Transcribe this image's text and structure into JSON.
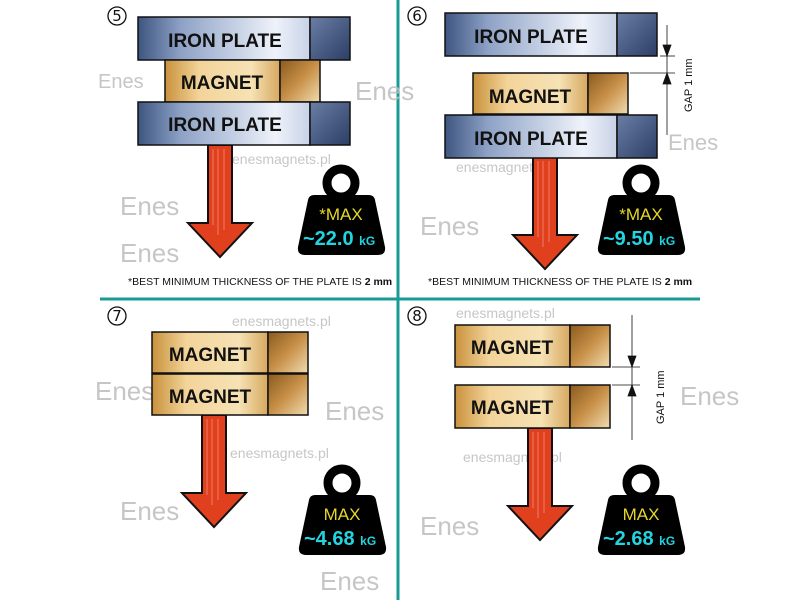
{
  "colors": {
    "divider": "#1a9a94",
    "arrow": "#e0401e",
    "max_text": "#e6d828",
    "value_text": "#22d3e0",
    "weight": "#000000"
  },
  "watermark": {
    "logo": "Enes",
    "site": "enesmagnets.pl"
  },
  "panels": [
    {
      "number": "5",
      "top_label": "IRON PLATE",
      "middle_label": "MAGNET",
      "bottom_label": "IRON PLATE",
      "max_label": "*MAX",
      "value": "~22.0",
      "unit": "kG",
      "footnote": "*BEST MINIMUM THICKNESS OF THE PLATE IS ",
      "footnote_value": "2 mm"
    },
    {
      "number": "6",
      "top_label": "IRON PLATE",
      "middle_label": "MAGNET",
      "bottom_label": "IRON PLATE",
      "gap_label": "GAP  1 mm",
      "max_label": "*MAX",
      "value": "~9.50",
      "unit": "kG",
      "footnote": "*BEST MINIMUM THICKNESS OF THE PLATE IS ",
      "footnote_value": "2 mm"
    },
    {
      "number": "7",
      "top_label": "MAGNET",
      "bottom_label": "MAGNET",
      "max_label": "MAX",
      "value": "~4.68",
      "unit": "kG"
    },
    {
      "number": "8",
      "top_label": "MAGNET",
      "bottom_label": "MAGNET",
      "gap_label": "GAP  1 mm",
      "max_label": "MAX",
      "value": "~2.68",
      "unit": "kG"
    }
  ]
}
